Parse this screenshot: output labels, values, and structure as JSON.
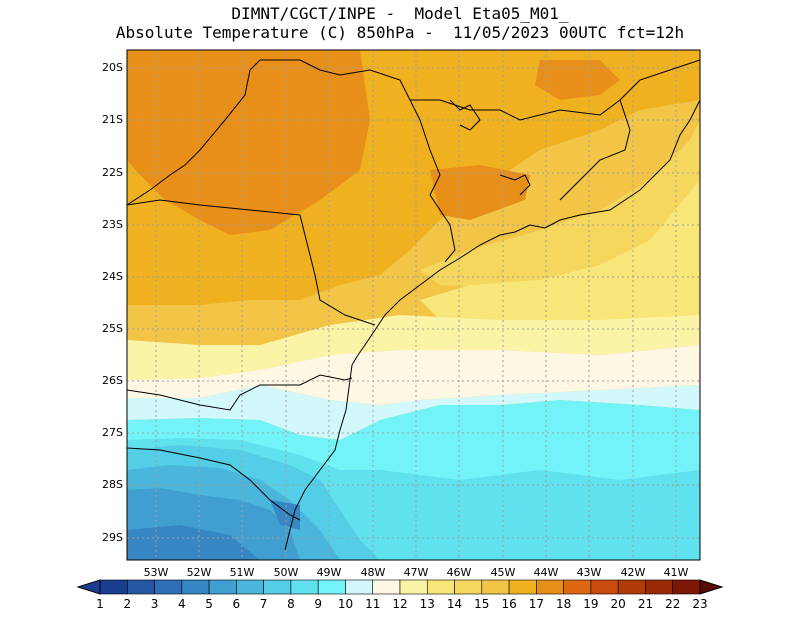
{
  "title": {
    "line1": "DIMNT/CGCT/INPE -  Model Eta05_M01_",
    "line2": "Absolute Temperature (C) 850hPa -  11/05/2023 00UTC fct=12h"
  },
  "map": {
    "lat_labels": [
      "20S",
      "21S",
      "22S",
      "23S",
      "24S",
      "25S",
      "26S",
      "27S",
      "28S",
      "29S"
    ],
    "lon_labels": [
      "53W",
      "52W",
      "51W",
      "50W",
      "49W",
      "48W",
      "47W",
      "46W",
      "45W",
      "44W",
      "43W",
      "42W",
      "41W"
    ],
    "lat_range": [
      -29.4,
      -19.8
    ],
    "lon_range": [
      -53.6,
      -40.3
    ],
    "gridlines": "dotted"
  },
  "colorbar": {
    "labels": [
      "1",
      "2",
      "3",
      "4",
      "5",
      "6",
      "7",
      "8",
      "9",
      "10",
      "11",
      "12",
      "13",
      "14",
      "15",
      "16",
      "17",
      "18",
      "19",
      "20",
      "21",
      "22",
      "23"
    ],
    "colors": [
      "#1a3d8f",
      "#2556a4",
      "#2d6fb8",
      "#3787c4",
      "#409fd0",
      "#4bb6dc",
      "#54cde6",
      "#60e1ee",
      "#72f3f7",
      "#d2f8fb",
      "#fdf7e4",
      "#fbf3a6",
      "#f9e679",
      "#f6d75e",
      "#f2c546",
      "#f0b120",
      "#e88f1a",
      "#dc6912",
      "#c94a0c",
      "#b03a08",
      "#9a2a06",
      "#7e1806"
    ],
    "arrow_left": "#1a3d8f",
    "arrow_right": "#5a0a08"
  }
}
